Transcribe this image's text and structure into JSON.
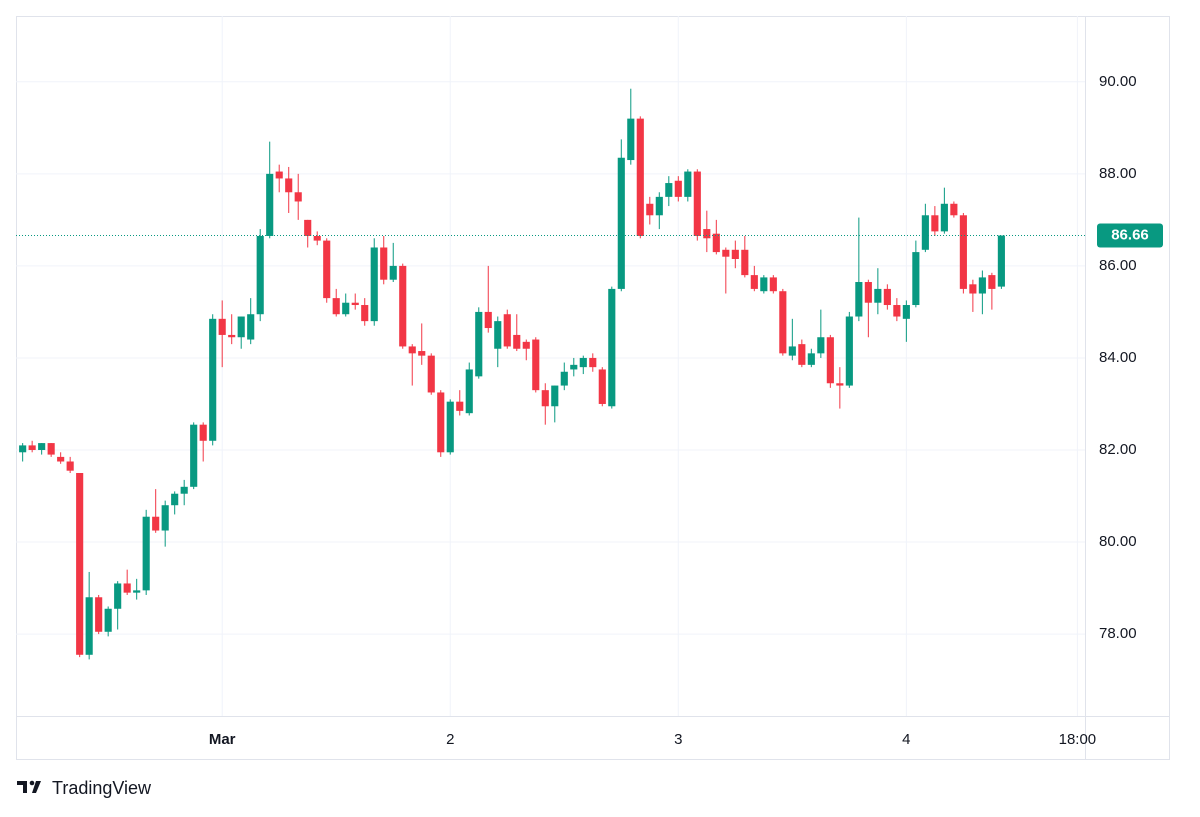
{
  "chart_data": {
    "type": "candlestick",
    "x": [
      -21,
      -20,
      -19,
      -18,
      -17,
      -16,
      -15,
      -14,
      -13,
      -12,
      -11,
      -10,
      -9,
      -8,
      -7,
      -6,
      -5,
      -4,
      -3,
      -2,
      -1,
      0,
      1,
      2,
      3,
      4,
      5,
      6,
      7,
      8,
      9,
      10,
      11,
      12,
      13,
      14,
      15,
      16,
      17,
      18,
      19,
      20,
      21,
      22,
      23,
      24,
      25,
      26,
      27,
      28,
      29,
      30,
      31,
      32,
      33,
      34,
      35,
      36,
      37,
      38,
      39,
      40,
      41,
      42,
      43,
      44,
      45,
      46,
      47,
      48,
      49,
      50,
      51,
      52,
      53,
      54,
      55,
      56,
      57,
      58,
      59,
      60,
      61,
      62,
      63,
      64,
      65,
      66,
      67,
      68,
      69,
      70,
      71,
      72,
      73,
      74,
      75,
      76,
      77,
      78,
      79,
      80,
      81,
      82
    ],
    "open": [
      81.95,
      82.1,
      82.0,
      82.15,
      81.85,
      81.75,
      81.5,
      77.55,
      78.8,
      78.05,
      78.55,
      79.1,
      78.9,
      78.95,
      80.55,
      80.25,
      80.8,
      81.05,
      81.2,
      82.55,
      82.2,
      84.85,
      84.5,
      84.45,
      84.4,
      84.95,
      86.65,
      88.05,
      87.9,
      87.6,
      87.0,
      86.65,
      86.55,
      85.3,
      84.95,
      85.2,
      85.15,
      84.8,
      86.4,
      85.7,
      86.0,
      84.25,
      84.15,
      84.05,
      83.25,
      81.95,
      83.05,
      82.8,
      83.6,
      85.0,
      84.2,
      84.95,
      84.5,
      84.35,
      84.4,
      83.3,
      82.95,
      83.4,
      83.75,
      83.8,
      84.0,
      83.75,
      82.95,
      85.5,
      88.3,
      89.2,
      87.35,
      87.1,
      87.5,
      87.85,
      87.5,
      88.05,
      86.8,
      86.7,
      86.35,
      86.35,
      86.35,
      85.8,
      85.45,
      85.75,
      85.45,
      84.05,
      84.3,
      83.85,
      84.1,
      84.45,
      83.45,
      83.4,
      84.9,
      85.65,
      85.2,
      85.5,
      85.15,
      84.85,
      85.15,
      86.35,
      87.1,
      86.75,
      87.35,
      87.1,
      85.6,
      85.4,
      85.8,
      85.55
    ],
    "high": [
      82.15,
      82.2,
      82.15,
      82.15,
      81.95,
      81.85,
      81.5,
      79.35,
      78.85,
      78.6,
      79.15,
      79.4,
      79.2,
      80.7,
      81.15,
      80.9,
      81.1,
      81.35,
      82.6,
      82.6,
      84.95,
      85.25,
      84.95,
      84.9,
      85.3,
      86.8,
      88.7,
      88.2,
      88.15,
      88.0,
      87.0,
      86.75,
      86.6,
      85.5,
      85.4,
      85.4,
      85.3,
      86.6,
      86.65,
      86.5,
      86.05,
      84.3,
      84.75,
      84.1,
      83.3,
      83.1,
      83.3,
      83.9,
      85.1,
      86.0,
      84.9,
      85.05,
      84.95,
      84.4,
      84.45,
      83.45,
      83.4,
      83.9,
      84.0,
      84.05,
      84.1,
      83.8,
      85.55,
      88.75,
      89.85,
      89.25,
      87.5,
      87.6,
      87.95,
      87.95,
      88.1,
      88.1,
      87.2,
      87.0,
      86.4,
      86.55,
      86.65,
      86.0,
      85.8,
      85.8,
      85.5,
      84.85,
      84.4,
      84.2,
      85.05,
      84.5,
      83.8,
      85.0,
      87.05,
      85.7,
      85.95,
      85.6,
      85.3,
      85.25,
      86.55,
      87.35,
      87.3,
      87.7,
      87.4,
      87.15,
      85.7,
      85.9,
      85.85,
      86.66
    ],
    "low": [
      81.75,
      81.95,
      81.9,
      81.85,
      81.7,
      81.5,
      77.5,
      77.45,
      78.0,
      77.95,
      78.1,
      78.85,
      78.75,
      78.85,
      80.2,
      79.9,
      80.6,
      80.8,
      81.15,
      81.75,
      82.1,
      83.8,
      84.3,
      84.2,
      84.3,
      84.8,
      86.6,
      87.6,
      87.15,
      87.0,
      86.4,
      86.45,
      85.2,
      84.9,
      84.9,
      85.05,
      84.7,
      84.7,
      85.6,
      85.65,
      84.2,
      83.4,
      83.85,
      83.2,
      81.85,
      81.9,
      82.75,
      82.75,
      83.55,
      84.55,
      83.8,
      84.2,
      84.15,
      83.95,
      83.25,
      82.55,
      82.6,
      83.3,
      83.6,
      83.65,
      83.7,
      82.95,
      82.9,
      85.45,
      88.2,
      86.6,
      86.9,
      86.8,
      87.3,
      87.4,
      87.4,
      86.55,
      86.3,
      86.25,
      85.4,
      85.95,
      85.75,
      85.45,
      85.4,
      85.4,
      84.05,
      83.95,
      83.8,
      83.8,
      84.0,
      83.35,
      82.9,
      83.35,
      84.8,
      84.45,
      84.95,
      85.05,
      84.8,
      84.35,
      85.1,
      86.3,
      86.65,
      86.7,
      87.05,
      85.4,
      85.0,
      84.95,
      85.05,
      85.5
    ],
    "close": [
      82.1,
      82.0,
      82.15,
      81.9,
      81.75,
      81.55,
      77.55,
      78.8,
      78.05,
      78.55,
      79.1,
      78.9,
      78.95,
      80.55,
      80.25,
      80.8,
      81.05,
      81.2,
      82.55,
      82.2,
      84.85,
      84.5,
      84.45,
      84.9,
      84.95,
      86.65,
      88.0,
      87.9,
      87.6,
      87.4,
      86.65,
      86.55,
      85.3,
      84.95,
      85.2,
      85.15,
      84.8,
      86.4,
      85.7,
      86.0,
      84.25,
      84.1,
      84.05,
      83.25,
      81.95,
      83.05,
      82.85,
      83.75,
      85.0,
      84.65,
      84.8,
      84.25,
      84.2,
      84.2,
      83.3,
      82.95,
      83.4,
      83.7,
      83.85,
      84.0,
      83.8,
      83.0,
      85.5,
      88.35,
      89.2,
      86.65,
      87.1,
      87.5,
      87.8,
      87.5,
      88.05,
      86.65,
      86.6,
      86.3,
      86.2,
      86.15,
      85.8,
      85.5,
      85.75,
      85.45,
      84.1,
      84.25,
      83.85,
      84.1,
      84.45,
      83.45,
      83.4,
      84.9,
      85.65,
      85.2,
      85.5,
      85.15,
      84.9,
      85.15,
      86.3,
      87.1,
      86.75,
      87.35,
      87.1,
      85.5,
      85.4,
      85.75,
      85.5,
      86.66
    ],
    "up_color": "#089981",
    "down_color": "#f23645",
    "xlim": [
      -21.7,
      90.8
    ],
    "ylim": [
      76.22,
      91.43
    ],
    "xticks": [
      {
        "value": 0,
        "label": "Mar"
      },
      {
        "value": 24,
        "label": "2"
      },
      {
        "value": 48,
        "label": "3"
      },
      {
        "value": 72,
        "label": "4"
      },
      {
        "value": 90,
        "label": "18:00"
      }
    ],
    "yticks": [
      {
        "value": 78,
        "label": "78.00"
      },
      {
        "value": 80,
        "label": "80.00"
      },
      {
        "value": 82,
        "label": "82.00"
      },
      {
        "value": 84,
        "label": "84.00"
      },
      {
        "value": 86,
        "label": "86.00"
      },
      {
        "value": 88,
        "label": "88.00"
      },
      {
        "value": 90,
        "label": "90.00"
      }
    ],
    "last_price": 86.66,
    "grid": true
  },
  "brand": "TradingView"
}
